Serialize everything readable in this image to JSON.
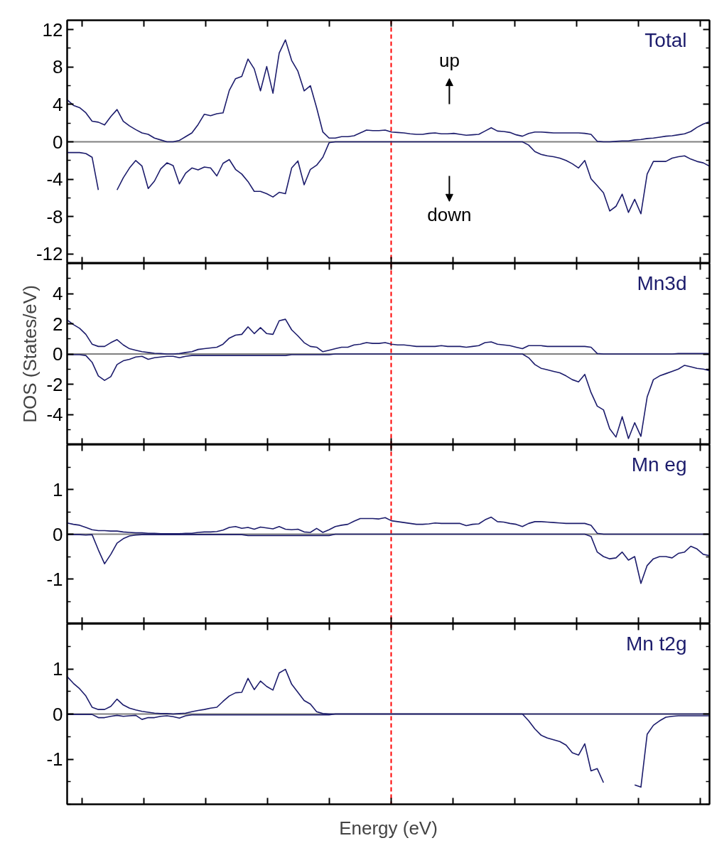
{
  "chart_data": [
    {
      "type": "line",
      "title": "Total",
      "tick_labels": "y",
      "ylim": [
        -13,
        13
      ],
      "yticks": [
        -12,
        -8,
        -4,
        0,
        4,
        8,
        12
      ],
      "annotations": [
        "up",
        "down"
      ],
      "categories": [
        null,
        null,
        null,
        null,
        null,
        null,
        null,
        null,
        null,
        null,
        null,
        null,
        null,
        null,
        null,
        null,
        null,
        null,
        null,
        null,
        null,
        null,
        null,
        null,
        null,
        null,
        null,
        null,
        null,
        null,
        null,
        null,
        null,
        null,
        null,
        null,
        null,
        null,
        null,
        null,
        null,
        null,
        null,
        null,
        null,
        null,
        null,
        null,
        null,
        null,
        null,
        null,
        null,
        null,
        null,
        null,
        null,
        null,
        null,
        null,
        null,
        null,
        null,
        null,
        null,
        null,
        null,
        null,
        null,
        null,
        null,
        null,
        null,
        null,
        null,
        null,
        null,
        null,
        null,
        null,
        null,
        null,
        null,
        null,
        null,
        null,
        null,
        null,
        null,
        null,
        null,
        null,
        null,
        null,
        null,
        null,
        null,
        null,
        null,
        null,
        null,
        null,
        null,
        null
      ],
      "ref_lines": [
        {
          "axis": "y",
          "value": 0,
          "color": "#808080"
        }
      ],
      "series": [
        {
          "color": "#1c1c6c",
          "values": [
            4.5,
            3.9,
            3.65,
            3.1,
            2.2,
            2.1,
            1.8,
            2.7,
            3.45,
            2.2,
            1.7,
            1.3,
            0.95,
            0.8,
            0.4,
            0.2,
            0,
            0,
            0.15,
            0.55,
            0.95,
            1.85,
            2.95,
            2.8,
            3.0,
            3.1,
            5.5,
            6.75,
            7.0,
            8.85,
            7.8,
            5.45,
            8.05,
            5.2,
            9.5,
            10.9,
            8.7,
            7.55,
            5.45,
            6.0,
            3.65,
            1.05,
            0.4,
            0.4,
            0.55,
            0.55,
            0.65,
            0.95,
            1.25,
            1.2,
            1.2,
            1.25,
            1.05,
            1.0,
            0.95,
            0.85,
            0.8,
            0.8,
            0.9,
            0.95,
            0.85,
            0.85,
            0.9,
            0.8,
            0.7,
            0.75,
            0.8,
            1.15,
            1.5,
            1.15,
            1.1,
            1.0,
            0.75,
            0.6,
            0.9,
            1.05,
            1.05,
            1.0,
            0.95,
            0.95,
            0.95,
            0.95,
            0.95,
            0.9,
            0.8,
            0.05,
            0,
            0,
            0.05,
            0.1,
            0.1,
            0.2,
            0.25,
            0.35,
            0.4,
            0.5,
            0.6,
            0.65,
            0.75,
            0.85,
            1.1,
            1.55,
            1.9,
            2.15
          ]
        },
        {
          "color": "#1c1c6c",
          "values": [
            -1.15,
            -1.15,
            -1.15,
            -1.25,
            -1.65,
            -5.15,
            null,
            null,
            -5.15,
            -3.85,
            -2.8,
            -2.0,
            -2.6,
            -5.0,
            -4.2,
            -2.9,
            -2.25,
            -2.55,
            -4.5,
            -3.35,
            -2.8,
            -3.0,
            -2.7,
            -2.8,
            -3.65,
            -2.3,
            -1.9,
            -2.95,
            -3.45,
            -4.25,
            -5.3,
            -5.3,
            -5.55,
            -5.9,
            -5.4,
            -5.55,
            -2.8,
            -2.05,
            -4.6,
            -2.95,
            -2.5,
            -1.65,
            -0.1,
            0,
            0,
            0,
            0,
            0,
            0,
            0,
            0,
            0,
            0,
            0,
            0,
            0,
            0,
            0,
            0,
            0,
            0,
            0,
            0,
            0,
            0,
            0,
            0,
            0,
            0,
            0,
            0,
            0,
            0,
            0,
            -0.35,
            -1.05,
            -1.35,
            -1.5,
            -1.6,
            -1.75,
            -2.0,
            -2.35,
            -2.8,
            -2.0,
            -3.95,
            -4.7,
            -5.45,
            -7.4,
            -6.9,
            -5.6,
            -7.55,
            -6.15,
            -7.7,
            -3.45,
            -2.1,
            -2.1,
            -2.1,
            -1.75,
            -1.6,
            -1.5,
            -1.85,
            -2.1,
            -2.25,
            -2.6
          ]
        }
      ]
    },
    {
      "type": "line",
      "title": "Mn3d",
      "tick_labels": "y",
      "ylabel": "DOS (States/eV)",
      "ylim": [
        -6,
        6
      ],
      "yticks": [
        -4,
        -2,
        0,
        2,
        4
      ],
      "categories": [
        null,
        null,
        null,
        null,
        null,
        null,
        null,
        null,
        null,
        null,
        null,
        null,
        null,
        null,
        null,
        null,
        null,
        null,
        null,
        null,
        null,
        null,
        null,
        null,
        null,
        null,
        null,
        null,
        null,
        null,
        null,
        null,
        null,
        null,
        null,
        null,
        null,
        null,
        null,
        null,
        null,
        null,
        null,
        null,
        null,
        null,
        null,
        null,
        null,
        null,
        null,
        null,
        null,
        null,
        null,
        null,
        null,
        null,
        null,
        null,
        null,
        null,
        null,
        null,
        null,
        null,
        null,
        null,
        null,
        null,
        null,
        null,
        null,
        null,
        null,
        null,
        null,
        null,
        null,
        null,
        null,
        null,
        null,
        null,
        null,
        null,
        null,
        null,
        null,
        null,
        null,
        null,
        null,
        null,
        null,
        null,
        null,
        null,
        null,
        null,
        null,
        null,
        null,
        null
      ],
      "ref_lines": [
        {
          "axis": "y",
          "value": 0,
          "color": "#808080"
        }
      ],
      "series": [
        {
          "color": "#1c1c6c",
          "values": [
            2.25,
            1.95,
            1.7,
            1.3,
            0.65,
            0.5,
            0.5,
            0.75,
            0.95,
            0.6,
            0.35,
            0.25,
            0.15,
            0.1,
            0.05,
            0.03,
            0,
            0,
            0.03,
            0.1,
            0.15,
            0.3,
            0.35,
            0.4,
            0.45,
            0.65,
            1.05,
            1.25,
            1.3,
            1.8,
            1.35,
            1.75,
            1.35,
            1.3,
            2.2,
            2.3,
            1.6,
            1.2,
            0.75,
            0.5,
            0.45,
            0.15,
            0.25,
            0.35,
            0.45,
            0.45,
            0.6,
            0.65,
            0.75,
            0.7,
            0.7,
            0.75,
            0.65,
            0.6,
            0.6,
            0.55,
            0.5,
            0.5,
            0.5,
            0.5,
            0.55,
            0.5,
            0.5,
            0.5,
            0.45,
            0.5,
            0.55,
            0.75,
            0.8,
            0.65,
            0.6,
            0.55,
            0.45,
            0.35,
            0.55,
            0.55,
            0.55,
            0.5,
            0.5,
            0.5,
            0.5,
            0.5,
            0.5,
            0.5,
            0.45,
            0.03,
            0,
            0,
            0,
            0,
            0,
            0,
            0,
            0,
            0,
            0,
            0,
            0,
            0.03,
            0.03,
            0.03,
            0.03,
            0.03,
            0.03
          ]
        },
        {
          "color": "#1c1c6c",
          "values": [
            -0.03,
            -0.05,
            -0.05,
            -0.1,
            -0.55,
            -1.45,
            -1.75,
            -1.5,
            -0.7,
            -0.45,
            -0.35,
            -0.2,
            -0.15,
            -0.35,
            -0.25,
            -0.2,
            -0.15,
            -0.15,
            -0.25,
            -0.15,
            -0.1,
            -0.1,
            -0.1,
            -0.1,
            -0.1,
            -0.1,
            -0.1,
            -0.1,
            -0.1,
            -0.1,
            -0.1,
            -0.1,
            -0.1,
            -0.1,
            -0.1,
            -0.1,
            -0.05,
            -0.05,
            -0.05,
            -0.05,
            -0.05,
            -0.05,
            -0.05,
            0,
            0,
            0,
            0,
            0,
            0,
            0,
            0,
            0,
            0,
            0,
            0,
            0,
            0,
            0,
            0,
            0,
            0,
            0,
            0,
            0,
            0,
            0,
            0,
            0,
            0,
            0,
            0,
            0,
            0,
            0,
            -0.25,
            -0.7,
            -0.95,
            -1.05,
            -1.15,
            -1.25,
            -1.45,
            -1.7,
            -1.85,
            -1.35,
            -2.55,
            -3.45,
            -3.7,
            -4.95,
            -5.5,
            -4.15,
            -5.6,
            -4.55,
            -5.45,
            -2.85,
            -1.7,
            -1.45,
            -1.3,
            -1.15,
            -1.0,
            -0.75,
            -0.85,
            -0.95,
            -1.0,
            -1.1
          ]
        }
      ]
    },
    {
      "type": "line",
      "title": "Mn eg",
      "tick_labels": "y",
      "ylim": [
        -2,
        2
      ],
      "yticks": [
        -1,
        0,
        1
      ],
      "categories": [
        null,
        null,
        null,
        null,
        null,
        null,
        null,
        null,
        null,
        null,
        null,
        null,
        null,
        null,
        null,
        null,
        null,
        null,
        null,
        null,
        null,
        null,
        null,
        null,
        null,
        null,
        null,
        null,
        null,
        null,
        null,
        null,
        null,
        null,
        null,
        null,
        null,
        null,
        null,
        null,
        null,
        null,
        null,
        null,
        null,
        null,
        null,
        null,
        null,
        null,
        null,
        null,
        null,
        null,
        null,
        null,
        null,
        null,
        null,
        null,
        null,
        null,
        null,
        null,
        null,
        null,
        null,
        null,
        null,
        null,
        null,
        null,
        null,
        null,
        null,
        null,
        null,
        null,
        null,
        null,
        null,
        null,
        null,
        null,
        null,
        null,
        null,
        null,
        null,
        null,
        null,
        null,
        null,
        null,
        null,
        null,
        null,
        null,
        null,
        null,
        null,
        null,
        null,
        null
      ],
      "ref_lines": [
        {
          "axis": "y",
          "value": 0,
          "color": "#808080"
        }
      ],
      "series": [
        {
          "color": "#1c1c6c",
          "values": [
            0.25,
            0.22,
            0.2,
            0.15,
            0.1,
            0.08,
            0.08,
            0.07,
            0.07,
            0.05,
            0.04,
            0.03,
            0.03,
            0.02,
            0.02,
            0.01,
            0.01,
            0.01,
            0.01,
            0.02,
            0.02,
            0.04,
            0.05,
            0.05,
            0.06,
            0.09,
            0.15,
            0.17,
            0.13,
            0.15,
            0.11,
            0.16,
            0.14,
            0.12,
            0.17,
            0.11,
            0.1,
            0.11,
            0.05,
            0.04,
            0.13,
            0.04,
            0.1,
            0.17,
            0.2,
            0.22,
            0.29,
            0.35,
            0.35,
            0.35,
            0.34,
            0.37,
            0.3,
            0.28,
            0.26,
            0.24,
            0.22,
            0.22,
            0.23,
            0.25,
            0.24,
            0.24,
            0.24,
            0.24,
            0.19,
            0.22,
            0.23,
            0.32,
            0.38,
            0.28,
            0.27,
            0.24,
            0.22,
            0.17,
            0.24,
            0.28,
            0.28,
            0.27,
            0.26,
            0.25,
            0.24,
            0.24,
            0.24,
            0.24,
            0.2,
            0.02,
            0,
            0,
            0,
            0,
            0,
            0,
            0,
            0,
            0,
            0,
            0,
            0,
            0,
            0,
            0,
            0,
            0,
            0
          ]
        },
        {
          "color": "#1c1c6c",
          "values": [
            -0.01,
            -0.01,
            -0.01,
            -0.02,
            -0.01,
            -0.35,
            -0.66,
            -0.45,
            -0.2,
            -0.1,
            -0.04,
            -0.02,
            -0.01,
            -0.01,
            -0.01,
            -0.01,
            -0.01,
            -0.01,
            -0.01,
            -0.01,
            -0.01,
            -0.01,
            -0.01,
            -0.01,
            -0.01,
            -0.01,
            -0.01,
            -0.01,
            -0.01,
            -0.03,
            -0.03,
            -0.03,
            -0.03,
            -0.03,
            -0.03,
            -0.03,
            -0.03,
            -0.03,
            -0.03,
            -0.03,
            -0.03,
            -0.03,
            -0.03,
            0,
            0,
            0,
            0,
            0,
            0,
            0,
            0,
            0,
            0,
            0,
            0,
            0,
            0,
            0,
            0,
            0,
            0,
            0,
            0,
            0,
            0,
            0,
            0,
            0,
            0,
            0,
            0,
            0,
            0,
            0,
            0,
            0,
            0,
            0,
            0,
            0,
            0,
            0,
            0,
            0,
            -0.05,
            -0.4,
            -0.5,
            -0.55,
            -0.53,
            -0.4,
            -0.58,
            -0.5,
            -1.1,
            -0.7,
            -0.55,
            -0.5,
            -0.5,
            -0.53,
            -0.43,
            -0.4,
            -0.27,
            -0.33,
            -0.45,
            -0.48
          ]
        }
      ]
    },
    {
      "type": "line",
      "title": "Mn t2g",
      "tick_labels": "y",
      "xlabel": "Energy (eV)",
      "ylim": [
        -2,
        2
      ],
      "yticks": [
        -1,
        0,
        1
      ],
      "categories": [
        null,
        null,
        null,
        null,
        null,
        null,
        null,
        null,
        null,
        null,
        null,
        null,
        null,
        null,
        null,
        null,
        null,
        null,
        null,
        null,
        null,
        null,
        null,
        null,
        null,
        null,
        null,
        null,
        null,
        null,
        null,
        null,
        null,
        null,
        null,
        null,
        null,
        null,
        null,
        null,
        null,
        null,
        null,
        null,
        null,
        null,
        null,
        null,
        null,
        null,
        null,
        null,
        null,
        null,
        null,
        null,
        null,
        null,
        null,
        null,
        null,
        null,
        null,
        null,
        null,
        null,
        null,
        null,
        null,
        null,
        null,
        null,
        null,
        null,
        null,
        null,
        null,
        null,
        null,
        null,
        null,
        null,
        null,
        null,
        null,
        null,
        null,
        null,
        null,
        null,
        null,
        null,
        null,
        null,
        null,
        null,
        null,
        null,
        null,
        null,
        null,
        null,
        null,
        null
      ],
      "ref_lines": [
        {
          "axis": "y",
          "value": 0,
          "color": "#808080"
        }
      ],
      "series": [
        {
          "color": "#1c1c6c",
          "values": [
            0.83,
            0.68,
            0.56,
            0.4,
            0.15,
            0.1,
            0.1,
            0.17,
            0.33,
            0.2,
            0.13,
            0.09,
            0.06,
            0.04,
            0.02,
            0.01,
            0.01,
            0,
            0.01,
            0.02,
            0.05,
            0.08,
            0.1,
            0.13,
            0.15,
            0.28,
            0.4,
            0.47,
            0.48,
            0.79,
            0.54,
            0.73,
            0.61,
            0.53,
            0.91,
            0.99,
            0.66,
            0.48,
            0.3,
            0.22,
            0.05,
            0.01,
            0,
            0,
            0,
            0,
            0,
            0,
            0,
            0,
            0,
            0,
            0,
            0,
            0,
            0,
            0,
            0,
            0,
            0,
            0,
            0,
            0,
            0,
            0,
            0,
            0,
            0,
            0,
            0,
            0,
            0,
            0,
            0,
            0,
            0,
            0,
            0,
            0,
            0,
            0,
            0,
            0,
            0,
            0,
            0,
            0,
            0,
            0,
            0,
            0,
            0,
            0,
            0,
            0,
            0,
            0,
            0,
            0,
            0,
            0,
            0,
            0,
            0
          ]
        },
        {
          "color": "#1c1c6c",
          "values": [
            -0.01,
            -0.01,
            -0.01,
            -0.01,
            -0.01,
            -0.08,
            -0.08,
            -0.05,
            -0.03,
            -0.05,
            -0.04,
            -0.03,
            -0.12,
            -0.08,
            -0.08,
            -0.05,
            -0.04,
            -0.06,
            -0.09,
            -0.04,
            -0.02,
            -0.02,
            -0.02,
            -0.02,
            -0.02,
            -0.02,
            -0.02,
            -0.02,
            -0.02,
            -0.02,
            -0.02,
            -0.02,
            -0.02,
            -0.02,
            -0.02,
            -0.02,
            -0.02,
            -0.02,
            -0.02,
            -0.02,
            -0.02,
            -0.02,
            -0.02,
            0,
            0,
            0,
            0,
            0,
            0,
            0,
            0,
            0,
            0,
            0,
            0,
            0,
            0,
            0,
            0,
            0,
            0,
            0,
            0,
            0,
            0,
            0,
            0,
            0,
            0,
            0,
            0,
            0,
            0,
            0,
            -0.15,
            -0.33,
            -0.47,
            -0.53,
            -0.57,
            -0.61,
            -0.69,
            -0.86,
            -0.91,
            -0.66,
            -1.26,
            -1.21,
            -1.52,
            null,
            null,
            null,
            null,
            -1.57,
            -1.62,
            -0.45,
            -0.25,
            -0.15,
            -0.07,
            -0.05,
            -0.04,
            -0.04,
            -0.04,
            -0.04,
            -0.04,
            -0.04
          ]
        }
      ]
    }
  ]
}
